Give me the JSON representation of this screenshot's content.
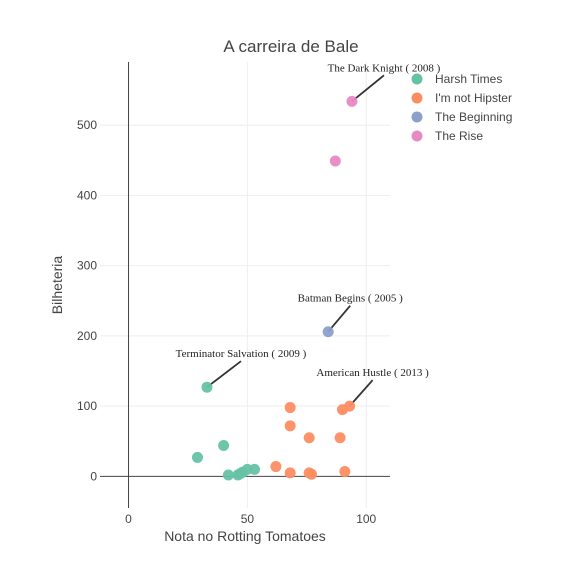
{
  "chart_data": {
    "type": "scatter",
    "title": "A carreira de Bale",
    "xlabel": "Nota no Rotting Tomatoes",
    "ylabel": "Bilheteria",
    "xlim": [
      -12,
      110
    ],
    "ylim": [
      -45,
      590
    ],
    "xticks": [
      0,
      50,
      100
    ],
    "yticks": [
      0,
      100,
      200,
      300,
      400,
      500
    ],
    "grid": true,
    "legend_position": "top-right",
    "series": [
      {
        "name": "Harsh Times",
        "color": "#66c2a5",
        "points": [
          {
            "x": 29,
            "y": 27
          },
          {
            "x": 40,
            "y": 44
          },
          {
            "x": 33,
            "y": 127
          },
          {
            "x": 42,
            "y": 2
          },
          {
            "x": 46,
            "y": 2
          },
          {
            "x": 47,
            "y": 4
          },
          {
            "x": 48,
            "y": 6
          },
          {
            "x": 50,
            "y": 10
          },
          {
            "x": 53,
            "y": 10
          }
        ]
      },
      {
        "name": "I'm not Hipster",
        "color": "#fc8d62",
        "points": [
          {
            "x": 68,
            "y": 98
          },
          {
            "x": 68,
            "y": 72
          },
          {
            "x": 76,
            "y": 55
          },
          {
            "x": 62,
            "y": 14
          },
          {
            "x": 68,
            "y": 5
          },
          {
            "x": 76,
            "y": 5
          },
          {
            "x": 77,
            "y": 3
          },
          {
            "x": 89,
            "y": 55
          },
          {
            "x": 90,
            "y": 95
          },
          {
            "x": 93,
            "y": 100
          },
          {
            "x": 91,
            "y": 7
          }
        ]
      },
      {
        "name": "The Beginning",
        "color": "#8da0cb",
        "points": [
          {
            "x": 84,
            "y": 206
          }
        ]
      },
      {
        "name": "The Rise",
        "color": "#e78ac3",
        "points": [
          {
            "x": 87,
            "y": 449
          },
          {
            "x": 94,
            "y": 534
          }
        ]
      }
    ],
    "annotations": [
      {
        "text": "The Dark Knight ( 2008 )",
        "x": 94,
        "y": 534
      },
      {
        "text": "Batman Begins ( 2005 )",
        "x": 84,
        "y": 206
      },
      {
        "text": "Terminator Salvation ( 2009 )",
        "x": 33,
        "y": 127
      },
      {
        "text": "American Hustle ( 2013 )",
        "x": 93,
        "y": 100
      }
    ]
  }
}
